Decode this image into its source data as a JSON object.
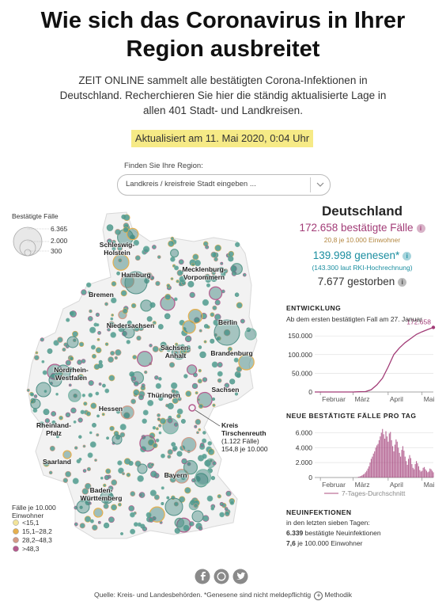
{
  "header": {
    "title": "Wie sich das Coronavirus in Ihrer Region ausbreitet",
    "intro": "ZEIT ONLINE sammelt alle bestätigten Corona-Infektionen in Deutschland. Recherchieren Sie hier die ständig aktualisierte Lage in allen 401 Stadt- und Landkreisen.",
    "updated": "Aktualisiert am 11. Mai 2020, 0:04 Uhr"
  },
  "search": {
    "label": "Finden Sie Ihre Region:",
    "placeholder": "Landkreis / kreisfreie Stadt eingeben ..."
  },
  "map": {
    "size_legend": {
      "title": "Bestätigte Fälle",
      "items": [
        "6.365",
        "2.000",
        "300"
      ]
    },
    "regions": [
      "Schleswig-Holstein",
      "Hamburg",
      "Mecklenburg-Vorpommern",
      "Bremen",
      "Niedersachsen",
      "Berlin",
      "Brandenburg",
      "Sachsen-Anhalt",
      "Nordrhein-Westfalen",
      "Sachsen",
      "Thüringen",
      "Hessen",
      "Rheinland-Pfalz",
      "Saarland",
      "Bayern",
      "Baden-Württemberg"
    ],
    "annotation": {
      "title": "Kreis Tirschenreuth",
      "cases": "(1.122 Fälle)",
      "rate": "154,8 je 10.000"
    },
    "color_legend": {
      "title": "Fälle je 10.000 Einwohner",
      "items": [
        {
          "label": "<15,1",
          "color": "#f2e49a"
        },
        {
          "label": "15,1–28,2",
          "color": "#e6b04e"
        },
        {
          "label": "28,2–48,3",
          "color": "#d49a86"
        },
        {
          "label": ">48,3",
          "color": "#b55b8e"
        }
      ]
    }
  },
  "summary": {
    "title": "Deutschland",
    "confirmed": "172.658 bestätigte Fälle",
    "confirmed_rate": "20,8 je 10.000 Einwohner",
    "recovered": "139.998 genesen*",
    "recovered_note": "(143.300 laut RKI-Hochrechnung)",
    "deaths": "7.677 gestorben"
  },
  "charts": {
    "development": {
      "type": "line",
      "title": "ENTWICKLUNG",
      "subtitle": "Ab dem ersten bestätigten Fall am 27. Januar",
      "x": [
        0,
        10,
        20,
        30,
        35,
        40,
        45,
        50,
        55,
        60,
        65,
        70,
        75,
        80,
        85,
        90,
        95,
        100,
        105
      ],
      "values": [
        1,
        14,
        16,
        50,
        150,
        800,
        1100,
        6000,
        19000,
        37000,
        67000,
        100000,
        118000,
        132000,
        143000,
        154000,
        161000,
        167000,
        172658
      ],
      "end_label": "172.658",
      "color": "#a23c77",
      "xlim": [
        0,
        105
      ],
      "ylim": [
        0,
        180000
      ],
      "xticks": [
        {
          "value": 5,
          "label": "Februar"
        },
        {
          "value": 34,
          "label": "März"
        },
        {
          "value": 65,
          "label": "April"
        },
        {
          "value": 95,
          "label": "Mai"
        }
      ],
      "yticks": [
        0,
        {
          "value": 50000,
          "label": "50.000"
        },
        {
          "value": 100000,
          "label": "100.000"
        },
        {
          "value": 150000,
          "label": "150.000"
        }
      ],
      "grid": true
    },
    "daily": {
      "type": "bar",
      "title": "NEUE BESTÄTIGTE FÄLLE PRO TAG",
      "x": [
        38,
        39,
        40,
        41,
        42,
        43,
        44,
        45,
        46,
        47,
        48,
        49,
        50,
        51,
        52,
        53,
        54,
        55,
        56,
        57,
        58,
        59,
        60,
        61,
        62,
        63,
        64,
        65,
        66,
        67,
        68,
        69,
        70,
        71,
        72,
        73,
        74,
        75,
        76,
        77,
        78,
        79,
        80,
        81,
        82,
        83,
        84,
        85,
        86,
        87,
        88,
        89,
        90,
        91,
        92,
        93,
        94,
        95,
        96,
        97,
        98,
        99,
        100,
        101,
        102,
        103,
        104,
        105
      ],
      "values": [
        50,
        100,
        150,
        200,
        300,
        400,
        500,
        700,
        900,
        1200,
        1500,
        2000,
        2500,
        2800,
        3200,
        3500,
        4000,
        4300,
        4500,
        5000,
        5500,
        6000,
        6500,
        5800,
        5200,
        6200,
        5500,
        4800,
        5900,
        6100,
        5000,
        4200,
        3500,
        4400,
        5100,
        4800,
        4000,
        3300,
        2800,
        3700,
        4200,
        3600,
        2800,
        2200,
        1700,
        2500,
        3000,
        2600,
        1800,
        1300,
        1100,
        1800,
        2200,
        1900,
        1500,
        1000,
        800,
        900,
        1300,
        1400,
        1100,
        900,
        700,
        800,
        1200,
        1100,
        900,
        700
      ],
      "legend": "7-Tages-Durchschnitt",
      "color": "#a23c77",
      "xlim": [
        0,
        105
      ],
      "ylim": [
        0,
        7000
      ],
      "xticks": [
        {
          "value": 5,
          "label": "Februar"
        },
        {
          "value": 34,
          "label": "März"
        },
        {
          "value": 65,
          "label": "April"
        },
        {
          "value": 95,
          "label": "Mai"
        }
      ],
      "yticks": [
        0,
        {
          "value": 2000,
          "label": "2.000"
        },
        {
          "value": 4000,
          "label": "4.000"
        },
        {
          "value": 6000,
          "label": "6.000"
        }
      ],
      "grid": true
    }
  },
  "new_infections": {
    "title": "NEUINFEKTIONEN",
    "subtitle": "in den letzten sieben Tagen:",
    "count": "6.339",
    "count_text": "bestätigte Neuinfektionen",
    "rate": "7,6",
    "rate_text": "je 100.000 Einwohner"
  },
  "footer": {
    "source": "Quelle: Kreis- und Landesbehörden. *Genesene sind nicht meldepflichtig",
    "method": "Methodik"
  }
}
